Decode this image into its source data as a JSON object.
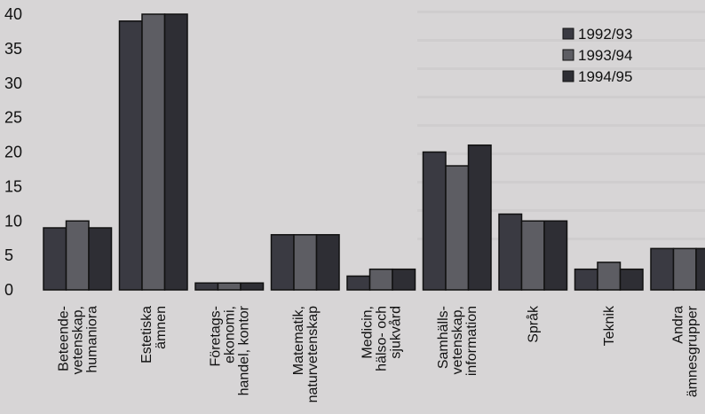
{
  "chart_data": {
    "type": "bar",
    "categories": [
      "Beteende-\nvetenskap,\nhumaniora",
      "Estetiska\nämnen",
      "Företags-\nekonomi,\nhandel, kontor",
      "Matematik,\nnaturvetenskap",
      "Medicin,\nhälso- och\nsjukvård",
      "Samhälls-\nvetenskap,\ninformation",
      "Språk",
      "Teknik",
      "Andra\nämnesgrupper"
    ],
    "series": [
      {
        "name": "1992/93",
        "values": [
          9,
          39,
          1,
          8,
          2,
          20,
          11,
          3,
          6
        ]
      },
      {
        "name": "1993/94",
        "values": [
          10,
          40,
          1,
          8,
          3,
          18,
          10,
          4,
          6
        ]
      },
      {
        "name": "1994/95",
        "values": [
          9,
          40,
          1,
          8,
          3,
          21,
          10,
          3,
          6
        ]
      }
    ],
    "yticks": [
      0,
      5,
      10,
      15,
      20,
      25,
      30,
      35,
      40
    ],
    "ylim": [
      0,
      40
    ],
    "grid": false,
    "legend_position": "top-right",
    "colors": [
      "#3a3a42",
      "#5d5d63",
      "#2e2e34"
    ]
  }
}
